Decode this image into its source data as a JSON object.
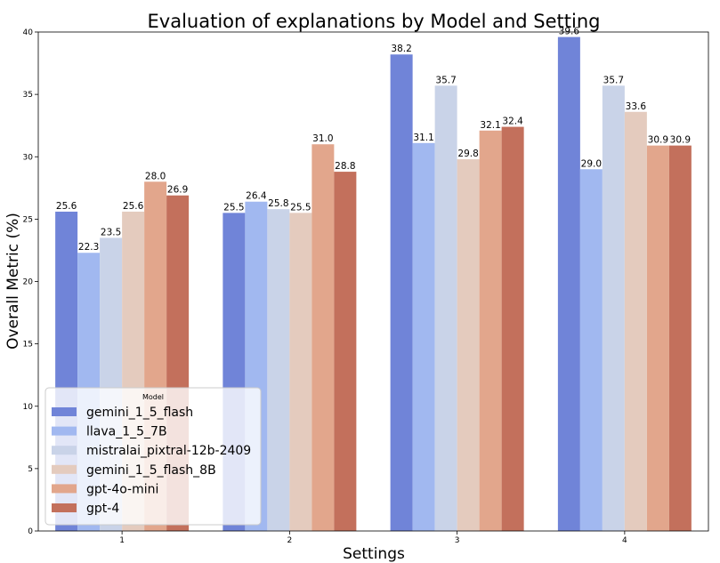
{
  "chart_data": {
    "type": "bar",
    "title": "Evaluation of explanations by Model and Setting",
    "xlabel": "Settings",
    "ylabel": "Overall Metric (%)",
    "ylim": [
      0,
      40
    ],
    "yticks": [
      0,
      5,
      10,
      15,
      20,
      25,
      30,
      35,
      40
    ],
    "categories": [
      "1",
      "2",
      "3",
      "4"
    ],
    "grid": false,
    "legend": {
      "title": "Model",
      "placement": "lower-left"
    },
    "series": [
      {
        "name": "gemini_1_5_flash",
        "color": "#7084d8",
        "values": [
          25.6,
          25.5,
          38.2,
          39.6
        ]
      },
      {
        "name": "llava_1_5_7B",
        "color": "#a1b8f0",
        "values": [
          22.3,
          26.4,
          31.1,
          29.0
        ]
      },
      {
        "name": "mistralai_pixtral-12b-2409",
        "color": "#c9d3e8",
        "values": [
          23.5,
          25.8,
          35.7,
          35.7
        ]
      },
      {
        "name": "gemini_1_5_flash_8B",
        "color": "#e4cbbe",
        "values": [
          25.6,
          25.5,
          29.8,
          33.6
        ]
      },
      {
        "name": "gpt-4o-mini",
        "color": "#e2a68c",
        "values": [
          28.0,
          31.0,
          32.1,
          30.9
        ]
      },
      {
        "name": "gpt-4",
        "color": "#c3705c",
        "values": [
          26.9,
          28.8,
          32.4,
          30.9
        ]
      }
    ]
  }
}
